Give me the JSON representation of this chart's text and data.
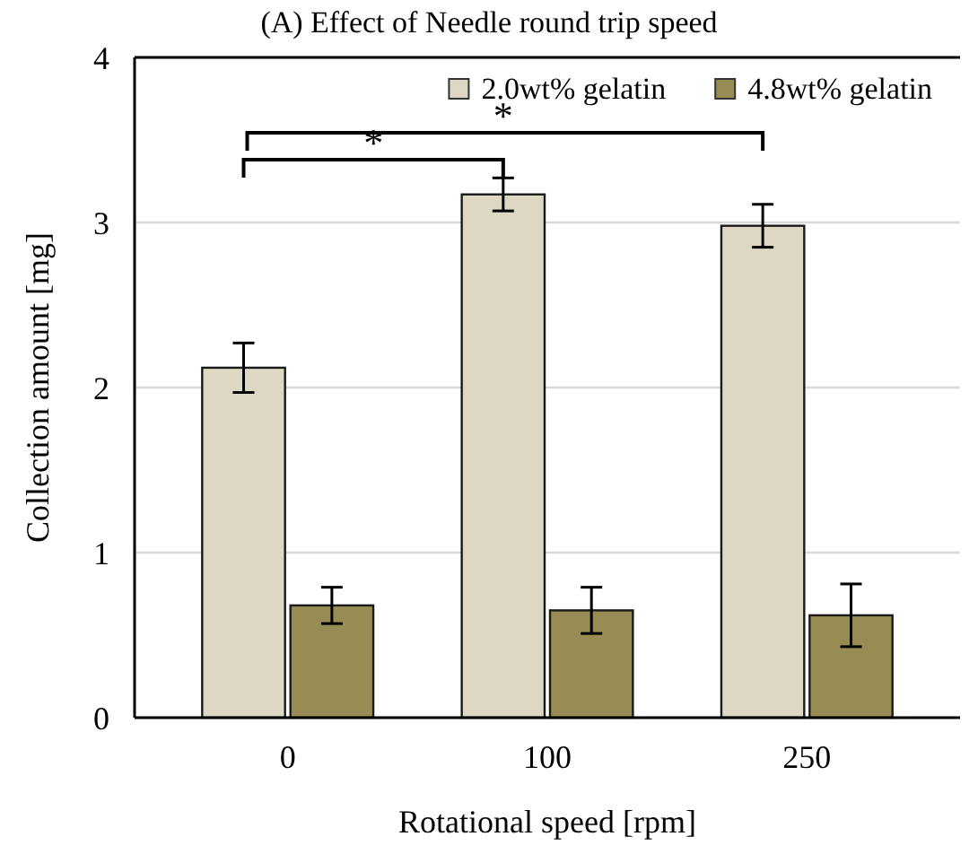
{
  "chart_data": {
    "type": "bar",
    "title": "(A) Effect of Needle round trip speed",
    "xlabel": "Rotational speed [rpm]",
    "ylabel": "Collection amount [mg]",
    "categories": [
      "0",
      "100",
      "250"
    ],
    "series": [
      {
        "name": "2.0wt% gelatin",
        "color": "#ddd8c3",
        "values": [
          2.12,
          3.17,
          2.98
        ],
        "errors": [
          0.15,
          0.1,
          0.13
        ]
      },
      {
        "name": "4.8wt% gelatin",
        "color": "#978c54",
        "values": [
          0.68,
          0.65,
          0.62
        ],
        "errors": [
          0.11,
          0.14,
          0.19
        ]
      }
    ],
    "ylim": [
      0,
      4
    ],
    "yticks": [
      0,
      1,
      2,
      3,
      4
    ],
    "grid": "y",
    "legend": "top right",
    "annotations": [
      "*",
      "*"
    ]
  }
}
